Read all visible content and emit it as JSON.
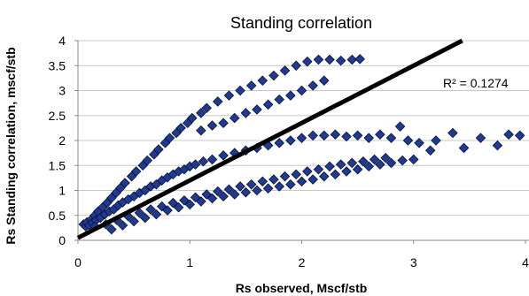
{
  "chart_data": {
    "type": "scatter",
    "title": "Standing correlation",
    "xlabel": "Rs observed, Mscf/stb",
    "ylabel": "Rs Standing correlation, mscf/stb",
    "xlim": [
      0,
      4
    ],
    "ylim": [
      0,
      4
    ],
    "x_ticks": [
      "0",
      "1",
      "2",
      "3",
      "4"
    ],
    "y_ticks": [
      "0",
      "0.5",
      "1",
      "1.5",
      "2",
      "2.5",
      "3",
      "3.5",
      "4"
    ],
    "grid": "horizontal",
    "legend": "none",
    "marker": "diamond",
    "marker_color": "#1f3a93",
    "marker_edge_color": "#0b1330",
    "trendline": {
      "type": "linear",
      "x": [
        0,
        4
      ],
      "y": [
        0.05,
        4.65
      ],
      "color": "#000000"
    },
    "annotation": "R² = 0.1274",
    "series": [
      {
        "name": "",
        "points": [
          [
            0.05,
            0.32
          ],
          [
            0.07,
            0.28
          ],
          [
            0.08,
            0.36
          ],
          [
            0.1,
            0.3
          ],
          [
            0.12,
            0.42
          ],
          [
            0.13,
            0.35
          ],
          [
            0.15,
            0.5
          ],
          [
            0.16,
            0.4
          ],
          [
            0.18,
            0.58
          ],
          [
            0.2,
            0.45
          ],
          [
            0.22,
            0.66
          ],
          [
            0.24,
            0.52
          ],
          [
            0.26,
            0.75
          ],
          [
            0.28,
            0.58
          ],
          [
            0.3,
            0.85
          ],
          [
            0.32,
            0.62
          ],
          [
            0.34,
            0.95
          ],
          [
            0.36,
            0.7
          ],
          [
            0.38,
            1.05
          ],
          [
            0.4,
            0.76
          ],
          [
            0.42,
            1.15
          ],
          [
            0.45,
            0.82
          ],
          [
            0.48,
            1.28
          ],
          [
            0.5,
            0.88
          ],
          [
            0.52,
            1.38
          ],
          [
            0.55,
            0.95
          ],
          [
            0.58,
            1.5
          ],
          [
            0.6,
            1.0
          ],
          [
            0.62,
            1.6
          ],
          [
            0.65,
            1.08
          ],
          [
            0.68,
            1.72
          ],
          [
            0.7,
            1.12
          ],
          [
            0.72,
            1.82
          ],
          [
            0.75,
            1.2
          ],
          [
            0.78,
            1.95
          ],
          [
            0.8,
            1.26
          ],
          [
            0.82,
            2.05
          ],
          [
            0.85,
            1.32
          ],
          [
            0.88,
            2.15
          ],
          [
            0.9,
            1.38
          ],
          [
            0.92,
            2.25
          ],
          [
            0.95,
            1.42
          ],
          [
            0.98,
            2.35
          ],
          [
            1.0,
            1.48
          ],
          [
            1.02,
            2.45
          ],
          [
            1.05,
            1.52
          ],
          [
            1.1,
            2.55
          ],
          [
            1.12,
            1.58
          ],
          [
            1.15,
            2.65
          ],
          [
            1.2,
            1.62
          ],
          [
            1.25,
            2.78
          ],
          [
            1.3,
            1.7
          ],
          [
            1.35,
            2.9
          ],
          [
            1.4,
            1.75
          ],
          [
            1.45,
            3.0
          ],
          [
            1.5,
            1.8
          ],
          [
            1.55,
            3.1
          ],
          [
            1.6,
            1.85
          ],
          [
            1.65,
            3.2
          ],
          [
            1.7,
            1.9
          ],
          [
            1.75,
            3.3
          ],
          [
            1.8,
            1.95
          ],
          [
            1.85,
            3.4
          ],
          [
            1.9,
            2.0
          ],
          [
            1.95,
            3.5
          ],
          [
            2.0,
            2.05
          ],
          [
            2.05,
            3.58
          ],
          [
            2.1,
            2.1
          ],
          [
            2.15,
            3.62
          ],
          [
            2.2,
            2.1
          ],
          [
            2.25,
            3.62
          ],
          [
            2.3,
            2.12
          ],
          [
            2.35,
            3.6
          ],
          [
            2.4,
            2.08
          ],
          [
            2.45,
            3.62
          ],
          [
            2.5,
            2.1
          ],
          [
            2.52,
            3.63
          ],
          [
            2.6,
            2.05
          ],
          [
            2.7,
            2.12
          ],
          [
            2.8,
            2.05
          ],
          [
            2.88,
            2.28
          ],
          [
            2.95,
            2.0
          ],
          [
            3.05,
            1.95
          ],
          [
            3.15,
            1.8
          ],
          [
            3.2,
            2.0
          ],
          [
            3.35,
            2.15
          ],
          [
            3.45,
            1.85
          ],
          [
            3.6,
            2.05
          ],
          [
            3.75,
            1.9
          ],
          [
            3.85,
            2.12
          ],
          [
            3.95,
            2.1
          ],
          [
            0.15,
            0.28
          ],
          [
            0.25,
            0.32
          ],
          [
            0.35,
            0.4
          ],
          [
            0.45,
            0.48
          ],
          [
            0.55,
            0.55
          ],
          [
            0.65,
            0.62
          ],
          [
            0.75,
            0.68
          ],
          [
            0.85,
            0.75
          ],
          [
            0.95,
            0.8
          ],
          [
            1.05,
            0.86
          ],
          [
            1.15,
            0.92
          ],
          [
            1.25,
            0.98
          ],
          [
            1.35,
            1.02
          ],
          [
            1.45,
            1.08
          ],
          [
            1.55,
            1.12
          ],
          [
            1.65,
            1.18
          ],
          [
            1.75,
            1.22
          ],
          [
            1.85,
            1.28
          ],
          [
            1.95,
            1.32
          ],
          [
            2.05,
            1.38
          ],
          [
            2.15,
            1.42
          ],
          [
            2.25,
            1.48
          ],
          [
            2.35,
            1.52
          ],
          [
            2.45,
            1.55
          ],
          [
            2.55,
            1.58
          ],
          [
            2.65,
            1.62
          ],
          [
            2.75,
            1.65
          ],
          [
            1.1,
            2.2
          ],
          [
            1.2,
            2.3
          ],
          [
            1.3,
            2.35
          ],
          [
            1.4,
            2.45
          ],
          [
            1.5,
            2.55
          ],
          [
            1.6,
            2.62
          ],
          [
            1.7,
            2.72
          ],
          [
            1.8,
            2.82
          ],
          [
            1.9,
            2.9
          ],
          [
            2.0,
            3.0
          ],
          [
            2.1,
            3.1
          ],
          [
            2.2,
            3.2
          ],
          [
            0.3,
            0.22
          ],
          [
            0.4,
            0.3
          ],
          [
            0.5,
            0.38
          ],
          [
            0.6,
            0.45
          ],
          [
            0.7,
            0.52
          ],
          [
            0.8,
            0.6
          ],
          [
            0.9,
            0.66
          ],
          [
            1.0,
            0.72
          ],
          [
            1.1,
            0.78
          ],
          [
            1.2,
            0.84
          ],
          [
            1.3,
            0.88
          ],
          [
            1.4,
            0.92
          ],
          [
            1.5,
            0.96
          ],
          [
            1.6,
            1.0
          ],
          [
            1.7,
            1.04
          ],
          [
            1.8,
            1.08
          ],
          [
            1.9,
            1.12
          ],
          [
            2.0,
            1.18
          ],
          [
            2.1,
            1.22
          ],
          [
            2.2,
            1.28
          ],
          [
            2.3,
            1.32
          ],
          [
            2.4,
            1.38
          ],
          [
            2.5,
            1.42
          ],
          [
            2.6,
            1.48
          ],
          [
            2.7,
            1.52
          ],
          [
            2.8,
            1.55
          ],
          [
            2.9,
            1.6
          ],
          [
            3.0,
            1.62
          ]
        ]
      }
    ]
  }
}
